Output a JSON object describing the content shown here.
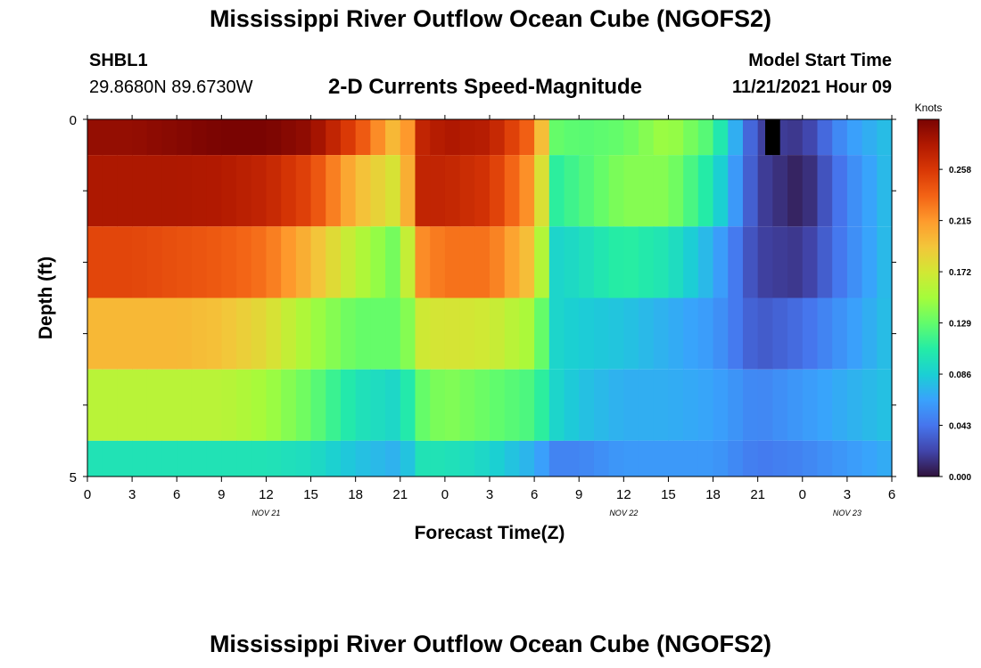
{
  "page": {
    "title": "Mississippi River Outflow Ocean Cube (NGOFS2)",
    "station_id": "SHBL1",
    "coordinates": "29.8680N  89.6730W",
    "subtitle": "2-D Currents Speed-Magnitude",
    "start_label": "Model Start Time",
    "start_value": "11/21/2021 Hour 09",
    "bottom_title": "Mississippi River Outflow Ocean Cube (NGOFS2)"
  },
  "chart_data": {
    "type": "heatmap",
    "title": "2-D Currents Speed-Magnitude",
    "xlabel": "Forecast Time(Z)",
    "ylabel": "Depth (ft)",
    "x_tick_labels": [
      "0",
      "3",
      "6",
      "9",
      "12",
      "15",
      "18",
      "21",
      "0",
      "3",
      "6",
      "9",
      "12",
      "15",
      "18",
      "21",
      "0",
      "3",
      "6"
    ],
    "date_labels": [
      {
        "label": "NOV 21",
        "hour": 12
      },
      {
        "label": "NOV 22",
        "hour": 36
      },
      {
        "label": "NOV 23",
        "hour": 51
      }
    ],
    "x_range_hours": [
      0,
      54
    ],
    "y_tick_labels": [
      "0",
      "5"
    ],
    "ylim": [
      0,
      5
    ],
    "colorbar": {
      "label": "Knots",
      "ticks": [
        "0.000",
        "0.043",
        "0.086",
        "0.129",
        "0.172",
        "0.215",
        "0.258"
      ],
      "range": [
        0,
        0.3
      ]
    },
    "depth_layers": [
      {
        "top": 0.0,
        "bottom": 0.5
      },
      {
        "top": 0.5,
        "bottom": 1.5
      },
      {
        "top": 1.5,
        "bottom": 2.5
      },
      {
        "top": 2.5,
        "bottom": 3.5
      },
      {
        "top": 3.5,
        "bottom": 4.5
      },
      {
        "top": 4.5,
        "bottom": 5.0
      }
    ],
    "time_hours": [
      0,
      3,
      6,
      9,
      12,
      15,
      18,
      21,
      22,
      22.5,
      24,
      27,
      30,
      31.5,
      33,
      36,
      39,
      42,
      45,
      48,
      51,
      54
    ],
    "speed_knots": [
      [
        0.29,
        0.29,
        0.295,
        0.3,
        0.3,
        0.29,
        0.25,
        0.19,
        0.24,
        0.27,
        0.28,
        0.275,
        0.23,
        0.13,
        0.125,
        0.13,
        0.15,
        0.12,
        0.02,
        0.015,
        0.06,
        0.08
      ],
      [
        0.28,
        0.28,
        0.28,
        0.278,
        0.27,
        0.25,
        0.2,
        0.17,
        0.24,
        0.27,
        0.27,
        0.26,
        0.21,
        0.11,
        0.12,
        0.14,
        0.14,
        0.1,
        0.02,
        0.005,
        0.05,
        0.08
      ],
      [
        0.25,
        0.25,
        0.245,
        0.24,
        0.23,
        0.2,
        0.16,
        0.13,
        0.2,
        0.22,
        0.23,
        0.23,
        0.19,
        0.09,
        0.095,
        0.11,
        0.1,
        0.07,
        0.02,
        0.015,
        0.05,
        0.08
      ],
      [
        0.2,
        0.2,
        0.2,
        0.195,
        0.18,
        0.15,
        0.13,
        0.13,
        0.15,
        0.17,
        0.175,
        0.17,
        0.15,
        0.09,
        0.085,
        0.08,
        0.07,
        0.06,
        0.03,
        0.04,
        0.06,
        0.08
      ],
      [
        0.16,
        0.16,
        0.16,
        0.16,
        0.15,
        0.13,
        0.1,
        0.09,
        0.12,
        0.13,
        0.14,
        0.13,
        0.12,
        0.09,
        0.08,
        0.07,
        0.07,
        0.065,
        0.05,
        0.06,
        0.07,
        0.08
      ],
      [
        0.1,
        0.1,
        0.1,
        0.1,
        0.1,
        0.095,
        0.08,
        0.07,
        0.09,
        0.1,
        0.1,
        0.09,
        0.07,
        0.05,
        0.05,
        0.06,
        0.06,
        0.06,
        0.045,
        0.05,
        0.06,
        0.07
      ]
    ],
    "missing_cells": [
      {
        "layer": 0,
        "hour": 46
      }
    ],
    "colors": {
      "missing": "#000000",
      "colormap": [
        "#30123b",
        "#4145ab",
        "#4675ed",
        "#39a2fc",
        "#1bcfd4",
        "#24eca6",
        "#61fc6c",
        "#a4fc3b",
        "#d1e834",
        "#f3c63a",
        "#fe9b2d",
        "#f36315",
        "#d93806",
        "#b11901",
        "#7a0402"
      ]
    }
  }
}
